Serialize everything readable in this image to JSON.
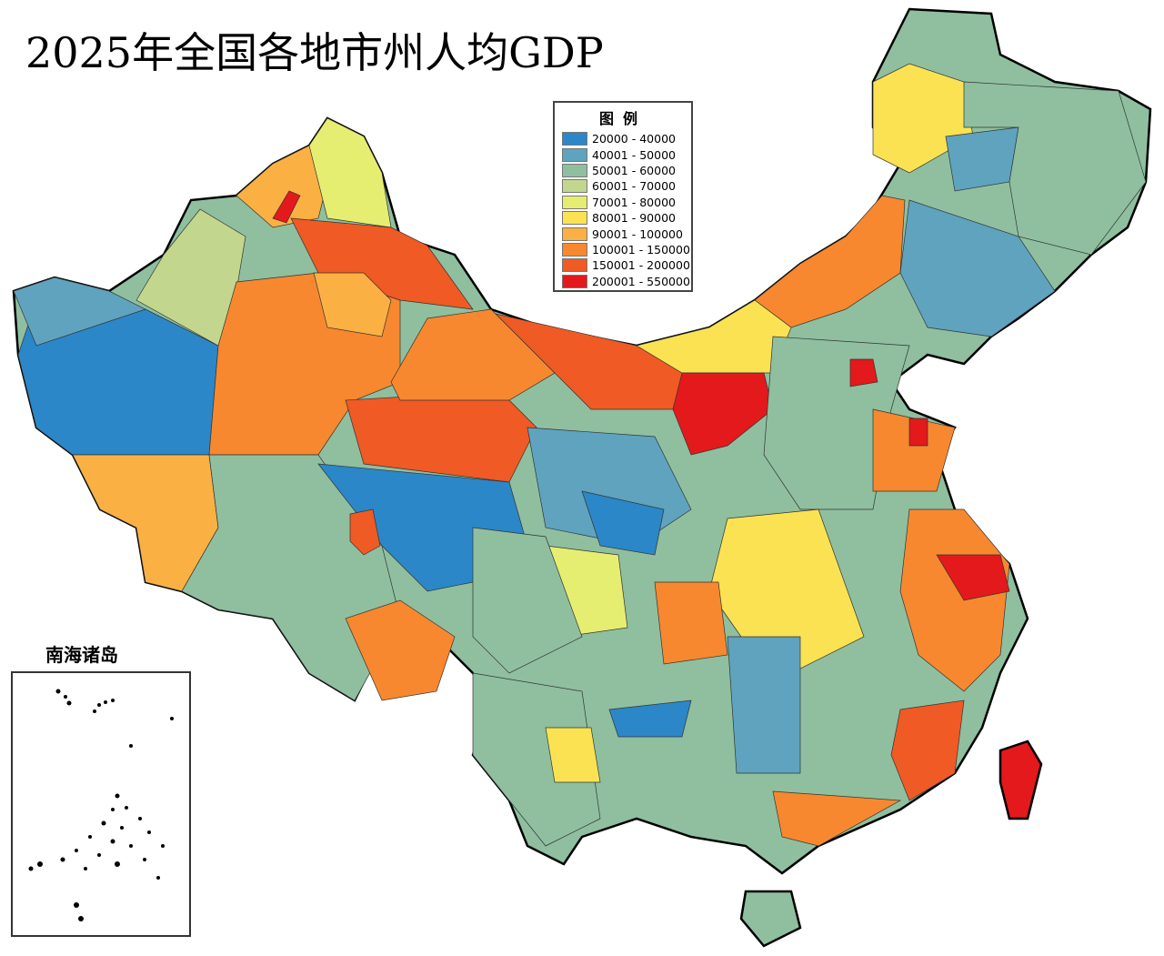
{
  "title": "2025年全国各地市州人均GDP",
  "legend": {
    "title": "图例",
    "items": [
      {
        "label": "20000 - 40000",
        "color": "#2b87c8"
      },
      {
        "label": "40001 - 50000",
        "color": "#5fa3bf"
      },
      {
        "label": "50001 - 60000",
        "color": "#8fbf9f"
      },
      {
        "label": "60001 - 70000",
        "color": "#c2d68e"
      },
      {
        "label": "70001 - 80000",
        "color": "#e6ee72"
      },
      {
        "label": "80001 - 90000",
        "color": "#fbe253"
      },
      {
        "label": "90001 - 100000",
        "color": "#fbb044"
      },
      {
        "label": "100001 - 150000",
        "color": "#f7882f"
      },
      {
        "label": "150001 - 200000",
        "color": "#ef5a25"
      },
      {
        "label": "200001 - 550000",
        "color": "#e3191c"
      }
    ]
  },
  "inset": {
    "title": "南海诸岛"
  }
}
